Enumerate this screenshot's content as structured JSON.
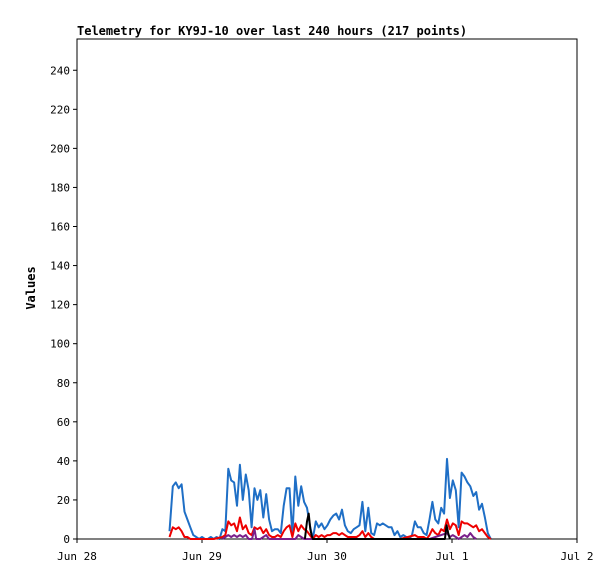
{
  "chart_data": {
    "type": "line",
    "title": "Telemetry for KY9J-10 over last 240 hours (217 points)",
    "xlabel": "",
    "ylabel": "Values",
    "x_ticks": [
      "Jun 28",
      "Jun 29",
      "Jun 30",
      "Jul 1",
      "Jul 2"
    ],
    "x_range_hours": [
      0,
      240
    ],
    "ylim": [
      0,
      256
    ],
    "y_ticks": [
      0,
      20,
      40,
      60,
      80,
      100,
      120,
      140,
      160,
      180,
      200,
      220,
      240
    ],
    "grid": false,
    "legend": "none",
    "series": [
      {
        "color": "#1f6fc6",
        "points": [
          [
            44.4,
            4
          ],
          [
            46,
            27
          ],
          [
            47.4,
            29
          ],
          [
            48.8,
            26
          ],
          [
            50.2,
            28
          ],
          [
            51.6,
            14
          ],
          [
            53,
            10
          ],
          [
            54.4,
            6
          ],
          [
            55.8,
            2
          ],
          [
            57.2,
            1
          ],
          [
            58.6,
            0
          ],
          [
            60,
            1
          ],
          [
            61.4,
            0
          ],
          [
            62.8,
            0
          ],
          [
            64.2,
            1
          ],
          [
            65.6,
            0
          ],
          [
            67,
            1
          ],
          [
            68.4,
            0
          ],
          [
            69.8,
            5
          ],
          [
            71.2,
            4
          ],
          [
            72.6,
            36
          ],
          [
            74,
            30
          ],
          [
            75.4,
            29
          ],
          [
            76.8,
            17
          ],
          [
            78.2,
            38
          ],
          [
            79.6,
            20
          ],
          [
            81,
            33
          ],
          [
            82.4,
            25
          ],
          [
            83.8,
            6
          ],
          [
            85.2,
            26
          ],
          [
            86.6,
            20
          ],
          [
            88,
            25
          ],
          [
            89.4,
            11
          ],
          [
            90.8,
            23
          ],
          [
            92.2,
            10
          ],
          [
            93.6,
            4
          ],
          [
            95,
            5
          ],
          [
            96.4,
            5
          ],
          [
            97.8,
            3
          ],
          [
            99.2,
            17
          ],
          [
            100.6,
            26
          ],
          [
            102,
            26
          ],
          [
            103.4,
            2
          ],
          [
            104.8,
            32
          ],
          [
            106.2,
            17
          ],
          [
            107.6,
            27
          ],
          [
            109,
            19
          ],
          [
            110.4,
            16
          ],
          [
            111.8,
            7
          ],
          [
            113.2,
            0
          ],
          [
            114.6,
            9
          ],
          [
            116,
            6
          ],
          [
            117.4,
            8
          ],
          [
            118.8,
            5
          ],
          [
            120.2,
            7
          ],
          [
            121.6,
            10
          ],
          [
            123,
            12
          ],
          [
            124.4,
            13
          ],
          [
            125.8,
            10
          ],
          [
            127.2,
            15
          ],
          [
            128.6,
            7
          ],
          [
            130,
            4
          ],
          [
            131.4,
            3
          ],
          [
            132.8,
            5
          ],
          [
            134.2,
            6
          ],
          [
            135.6,
            7
          ],
          [
            137,
            19
          ],
          [
            138.4,
            4
          ],
          [
            139.8,
            16
          ],
          [
            141.2,
            3
          ],
          [
            142.6,
            2
          ],
          [
            144,
            8
          ],
          [
            145.4,
            7
          ],
          [
            146.8,
            8
          ],
          [
            148.2,
            7
          ],
          [
            149.6,
            6
          ],
          [
            151,
            6
          ],
          [
            152.4,
            2
          ],
          [
            153.8,
            4
          ],
          [
            155.2,
            1
          ],
          [
            156.6,
            2
          ],
          [
            158,
            1
          ],
          [
            159.4,
            0
          ],
          [
            160.8,
            2
          ],
          [
            162.2,
            9
          ],
          [
            163.6,
            6
          ],
          [
            165,
            6
          ],
          [
            166.4,
            3
          ],
          [
            167.8,
            2
          ],
          [
            169.2,
            10
          ],
          [
            170.6,
            19
          ],
          [
            172,
            10
          ],
          [
            173.4,
            8
          ],
          [
            174.8,
            16
          ],
          [
            176.2,
            13
          ],
          [
            177.6,
            41
          ],
          [
            179,
            21
          ],
          [
            180.4,
            30
          ],
          [
            181.8,
            25
          ],
          [
            183.2,
            6
          ],
          [
            184.6,
            34
          ],
          [
            186,
            32
          ],
          [
            187.4,
            29
          ],
          [
            188.8,
            27
          ],
          [
            190.2,
            22
          ],
          [
            191.6,
            24
          ],
          [
            193,
            15
          ],
          [
            194.4,
            18
          ],
          [
            195.8,
            11
          ],
          [
            197.2,
            3
          ],
          [
            198.6,
            0
          ]
        ]
      },
      {
        "color": "#ee0000",
        "points": [
          [
            44.4,
            1
          ],
          [
            46,
            6
          ],
          [
            47.4,
            5
          ],
          [
            48.8,
            6
          ],
          [
            50.2,
            4
          ],
          [
            51.6,
            1
          ],
          [
            53,
            1
          ],
          [
            54.4,
            0
          ],
          [
            58.6,
            0
          ],
          [
            65.6,
            0
          ],
          [
            69.8,
            1
          ],
          [
            71.2,
            2
          ],
          [
            72.6,
            9
          ],
          [
            74,
            7
          ],
          [
            75.4,
            8
          ],
          [
            76.8,
            4
          ],
          [
            78.2,
            11
          ],
          [
            79.6,
            5
          ],
          [
            81,
            7
          ],
          [
            82.4,
            3
          ],
          [
            83.8,
            2
          ],
          [
            85.2,
            6
          ],
          [
            86.6,
            5
          ],
          [
            88,
            6
          ],
          [
            89.4,
            3
          ],
          [
            90.8,
            5
          ],
          [
            92.2,
            2
          ],
          [
            93.6,
            1
          ],
          [
            95,
            1
          ],
          [
            96.4,
            2
          ],
          [
            97.8,
            1
          ],
          [
            99.2,
            4
          ],
          [
            100.6,
            6
          ],
          [
            102,
            7
          ],
          [
            103.4,
            1
          ],
          [
            104.8,
            8
          ],
          [
            106.2,
            4
          ],
          [
            107.6,
            7
          ],
          [
            109,
            5
          ],
          [
            110.4,
            4
          ],
          [
            111.8,
            2
          ],
          [
            113.2,
            0
          ],
          [
            114.6,
            2
          ],
          [
            116,
            1
          ],
          [
            117.4,
            2
          ],
          [
            118.8,
            1
          ],
          [
            120.2,
            2
          ],
          [
            121.6,
            2
          ],
          [
            123,
            3
          ],
          [
            124.4,
            3
          ],
          [
            125.8,
            2
          ],
          [
            127.2,
            3
          ],
          [
            128.6,
            2
          ],
          [
            130,
            1
          ],
          [
            131.4,
            1
          ],
          [
            132.8,
            1
          ],
          [
            134.2,
            1
          ],
          [
            135.6,
            2
          ],
          [
            137,
            4
          ],
          [
            138.4,
            1
          ],
          [
            139.8,
            3
          ],
          [
            141.2,
            1
          ],
          [
            142.6,
            0
          ],
          [
            155.2,
            0
          ],
          [
            162.2,
            2
          ],
          [
            163.6,
            1
          ],
          [
            165,
            1
          ],
          [
            166.4,
            1
          ],
          [
            167.8,
            0
          ],
          [
            169.2,
            2
          ],
          [
            170.6,
            5
          ],
          [
            172,
            3
          ],
          [
            173.4,
            2
          ],
          [
            174.8,
            5
          ],
          [
            176.2,
            4
          ],
          [
            177.6,
            10
          ],
          [
            179,
            5
          ],
          [
            180.4,
            8
          ],
          [
            181.8,
            7
          ],
          [
            183.2,
            2
          ],
          [
            184.6,
            9
          ],
          [
            186,
            8
          ],
          [
            187.4,
            8
          ],
          [
            188.8,
            7
          ],
          [
            190.2,
            6
          ],
          [
            191.6,
            7
          ],
          [
            193,
            4
          ],
          [
            194.4,
            5
          ],
          [
            195.8,
            3
          ],
          [
            197.2,
            1
          ],
          [
            198.6,
            0
          ]
        ]
      },
      {
        "color": "#7a1f8a",
        "points": [
          [
            69.8,
            0
          ],
          [
            72.6,
            2
          ],
          [
            74,
            1
          ],
          [
            75.4,
            2
          ],
          [
            76.8,
            1
          ],
          [
            78.2,
            2
          ],
          [
            79.6,
            1
          ],
          [
            81,
            2
          ],
          [
            82.4,
            0
          ],
          [
            84,
            0
          ],
          [
            85.2,
            5
          ],
          [
            86,
            0
          ],
          [
            88,
            0
          ],
          [
            90.8,
            2
          ],
          [
            92.2,
            0
          ],
          [
            104.8,
            0
          ],
          [
            106.2,
            2
          ],
          [
            107.6,
            1
          ],
          [
            109,
            0
          ],
          [
            169.2,
            0
          ],
          [
            177.6,
            3
          ],
          [
            179,
            1
          ],
          [
            180.4,
            2
          ],
          [
            181.8,
            1
          ],
          [
            183.2,
            0
          ],
          [
            186,
            2
          ],
          [
            187.4,
            1
          ],
          [
            188.8,
            3
          ],
          [
            190.2,
            1
          ],
          [
            191.6,
            0
          ]
        ]
      },
      {
        "color": "#000000",
        "points": [
          [
            109.4,
            0
          ],
          [
            110.4,
            9
          ],
          [
            111.2,
            13
          ],
          [
            112,
            5
          ],
          [
            112.6,
            2
          ],
          [
            113.2,
            0
          ],
          [
            176.6,
            0
          ],
          [
            177.4,
            7
          ],
          [
            178.2,
            3
          ],
          [
            179,
            0
          ]
        ]
      }
    ]
  }
}
